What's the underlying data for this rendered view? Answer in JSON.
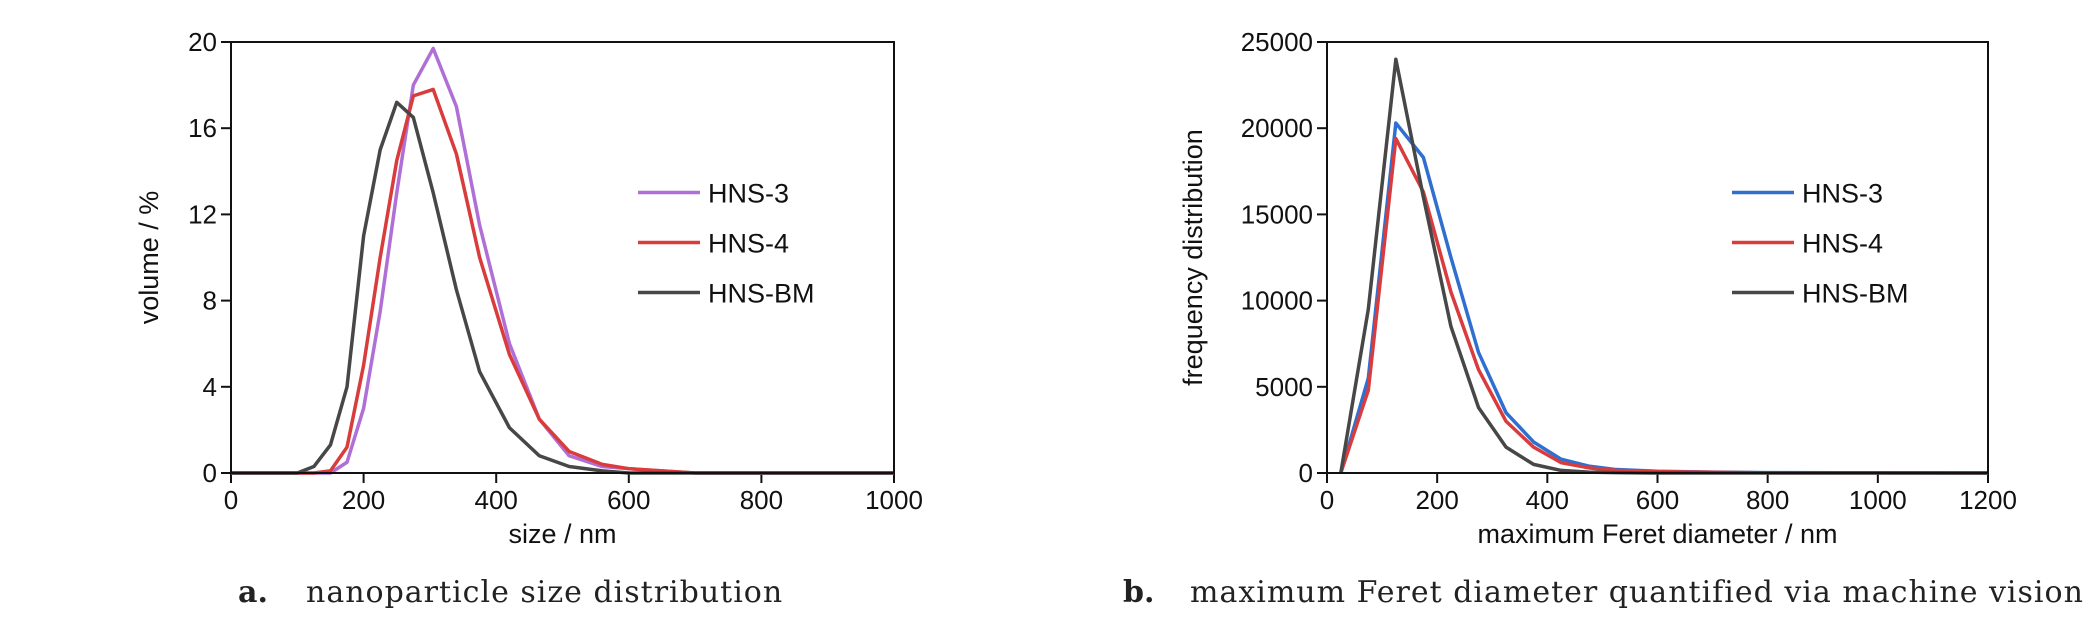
{
  "chart_data": [
    {
      "type": "line",
      "caption_label": "a.",
      "caption": "nanoparticle size distribution",
      "xlabel": "size / nm",
      "ylabel": "volume / %",
      "x": [
        0,
        50,
        100,
        125,
        150,
        175,
        200,
        225,
        250,
        275,
        305,
        340,
        375,
        420,
        465,
        510,
        560,
        600,
        650,
        700,
        1000
      ],
      "series": [
        {
          "name": "HNS-3",
          "color": "#b06fd6",
          "values": [
            0,
            0,
            0,
            0,
            0,
            0.5,
            3,
            7.5,
            13,
            18,
            19.7,
            17,
            11.5,
            6,
            2.5,
            0.8,
            0.3,
            0.2,
            0.1,
            0,
            0
          ]
        },
        {
          "name": "HNS-4",
          "color": "#d93c3c",
          "values": [
            0,
            0,
            0,
            0,
            0.1,
            1.2,
            5,
            10,
            14.5,
            17.5,
            17.8,
            14.8,
            10,
            5.5,
            2.5,
            1,
            0.4,
            0.2,
            0.1,
            0,
            0
          ]
        },
        {
          "name": "HNS-BM",
          "color": "#474747",
          "values": [
            0,
            0,
            0,
            0.3,
            1.3,
            4,
            11,
            15,
            17.2,
            16.5,
            13,
            8.5,
            4.7,
            2.1,
            0.8,
            0.3,
            0.1,
            0,
            0,
            0,
            0
          ]
        }
      ],
      "xlim": [
        0,
        1000
      ],
      "xticks": [
        0,
        200,
        400,
        600,
        800,
        1000
      ],
      "ylim": [
        0,
        20
      ],
      "yticks": [
        0,
        4,
        8,
        12,
        16,
        20
      ],
      "legend": "center right"
    },
    {
      "type": "line",
      "caption_label": "b.",
      "caption": "maximum Feret diameter quantified via machine vision",
      "xlabel": "maximum Feret diameter / nm",
      "ylabel": "frequency distribution",
      "x": [
        25,
        75,
        125,
        175,
        225,
        275,
        325,
        375,
        425,
        475,
        525,
        600,
        700,
        800,
        1200
      ],
      "series": [
        {
          "name": "HNS-3",
          "color": "#2f6fd0",
          "values": [
            0,
            5500,
            20300,
            18300,
            12500,
            7000,
            3500,
            1800,
            800,
            400,
            200,
            100,
            50,
            20,
            0
          ]
        },
        {
          "name": "HNS-4",
          "color": "#d93c3c",
          "values": [
            0,
            4800,
            19400,
            16300,
            10500,
            6000,
            3000,
            1500,
            600,
            300,
            150,
            80,
            40,
            10,
            0
          ]
        },
        {
          "name": "HNS-BM",
          "color": "#474747",
          "values": [
            0,
            9500,
            24000,
            16000,
            8500,
            3800,
            1500,
            500,
            150,
            50,
            20,
            0,
            0,
            0,
            0
          ]
        }
      ],
      "xlim": [
        0,
        1200
      ],
      "xticks": [
        0,
        200,
        400,
        600,
        800,
        1000,
        1200
      ],
      "ylim": [
        0,
        25000
      ],
      "yticks": [
        0,
        5000,
        10000,
        15000,
        20000,
        25000
      ],
      "legend": "center right"
    }
  ]
}
